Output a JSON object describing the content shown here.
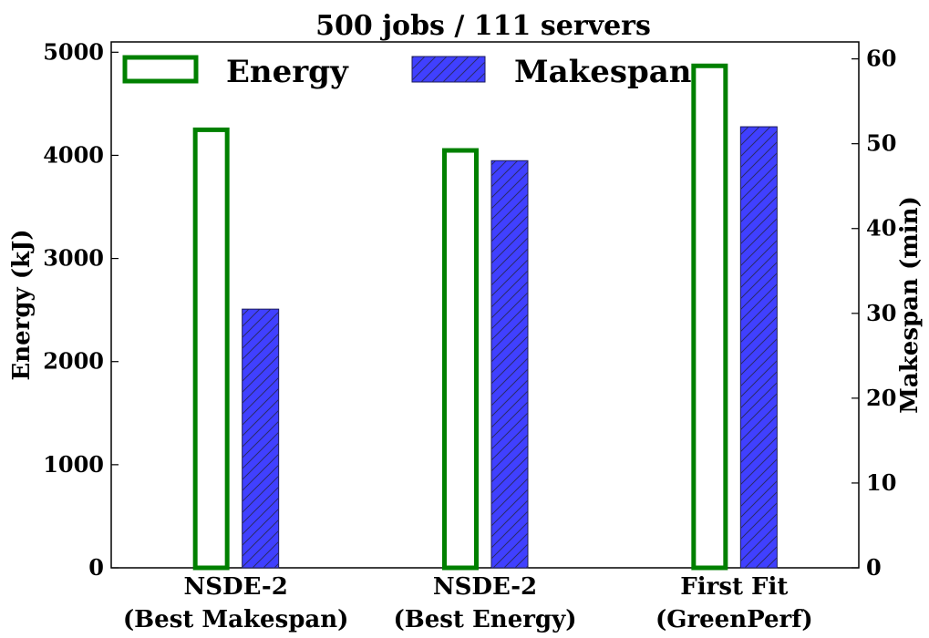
{
  "chart_data": {
    "type": "bar",
    "title": "500 jobs / 111 servers",
    "categories": [
      [
        "NSDE-2",
        "(Best Makespan)"
      ],
      [
        "NSDE-2",
        "(Best Energy)"
      ],
      [
        "First Fit",
        "(GreenPerf)"
      ]
    ],
    "series": [
      {
        "name": "Energy",
        "axis": "left",
        "style": "outline",
        "color": "#008000",
        "values": [
          4270,
          4070,
          4890
        ]
      },
      {
        "name": "Makespan",
        "axis": "right",
        "style": "hatched",
        "color": "#4040ff",
        "values": [
          30.5,
          48,
          52
        ]
      }
    ],
    "left_axis": {
      "label": "Energy (kJ)",
      "ylim": [
        0,
        5100
      ],
      "ticks": [
        0,
        1000,
        2000,
        3000,
        4000,
        5000
      ]
    },
    "right_axis": {
      "label": "Makespan (min)",
      "ylim": [
        0,
        62
      ],
      "ticks": [
        0,
        10,
        20,
        30,
        40,
        50,
        60
      ]
    },
    "legend_position": "top",
    "grid": false
  }
}
